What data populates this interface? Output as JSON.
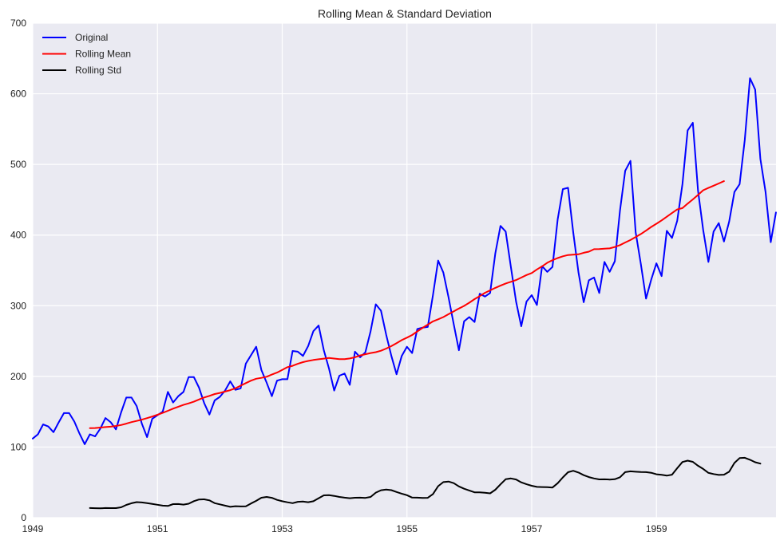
{
  "chart_data": {
    "type": "line",
    "title": "Rolling Mean & Standard Deviation",
    "xlabel": "",
    "ylabel": "",
    "xlim": [
      1949.0,
      1960.917
    ],
    "ylim": [
      0,
      700
    ],
    "x_ticks": [
      1949,
      1951,
      1953,
      1955,
      1957,
      1959
    ],
    "x_tick_labels": [
      "1949",
      "1951",
      "1953",
      "1955",
      "1957",
      "1959"
    ],
    "y_ticks": [
      0,
      100,
      200,
      300,
      400,
      500,
      600,
      700
    ],
    "y_tick_labels": [
      "0",
      "100",
      "200",
      "300",
      "400",
      "500",
      "600",
      "700"
    ],
    "grid": true,
    "legend_position": "top-left",
    "x_start": 1949.0,
    "x_step": 0.08333,
    "series": [
      {
        "name": "Original",
        "color": "#0000ff",
        "start_index": 0,
        "values": [
          112,
          118,
          132,
          129,
          121,
          135,
          148,
          148,
          136,
          119,
          104,
          118,
          115,
          126,
          141,
          135,
          125,
          149,
          170,
          170,
          158,
          133,
          114,
          140,
          145,
          150,
          178,
          163,
          172,
          178,
          199,
          199,
          184,
          162,
          146,
          166,
          171,
          180,
          193,
          181,
          183,
          218,
          230,
          242,
          209,
          191,
          172,
          194,
          196,
          196,
          236,
          235,
          229,
          243,
          264,
          272,
          237,
          211,
          180,
          201,
          204,
          188,
          235,
          227,
          234,
          264,
          302,
          293,
          259,
          229,
          203,
          229,
          242,
          233,
          267,
          269,
          270,
          315,
          364,
          347,
          312,
          274,
          237,
          278,
          284,
          277,
          317,
          313,
          318,
          374,
          413,
          405,
          355,
          306,
          271,
          306,
          315,
          301,
          356,
          348,
          355,
          422,
          465,
          467,
          404,
          347,
          305,
          336,
          340,
          318,
          362,
          348,
          363,
          435,
          491,
          505,
          404,
          359,
          310,
          337,
          360,
          342,
          406,
          396,
          420,
          472,
          548,
          559,
          463,
          407,
          362,
          405,
          417,
          391,
          419,
          461,
          472,
          535,
          622,
          606,
          508,
          461,
          390,
          432
        ]
      },
      {
        "name": "Rolling Mean",
        "color": "#ff0000",
        "start_index": 11,
        "values": [
          126.7,
          126.9,
          127.6,
          128.3,
          128.8,
          129.8,
          131.2,
          133.1,
          135.3,
          137.0,
          138.8,
          140.9,
          143.2,
          145.7,
          148.4,
          151.3,
          154.3,
          157.0,
          159.6,
          161.8,
          164.2,
          167.3,
          170.2,
          172.4,
          175.0,
          176.6,
          178.5,
          180.5,
          183.1,
          186.8,
          190.5,
          194.0,
          196.7,
          197.9,
          199.5,
          202.5,
          205.4,
          209.2,
          213.0,
          215.0,
          217.8,
          220.2,
          221.9,
          223.2,
          224.2,
          225.1,
          226.0,
          225.2,
          224.5,
          224.3,
          225.3,
          227.0,
          229.7,
          231.3,
          233.0,
          234.3,
          236.3,
          239.3,
          242.8,
          247.0,
          251.3,
          254.8,
          258.6,
          263.6,
          268.7,
          273.2,
          277.8,
          280.8,
          284.0,
          288.0,
          292.0,
          296.0,
          299.8,
          304.3,
          309.3,
          313.7,
          318.3,
          321.8,
          325.3,
          328.4,
          331.5,
          333.8,
          336.3,
          339.8,
          343.5,
          346.3,
          351.3,
          355.8,
          360.8,
          364.5,
          367.5,
          370.0,
          371.8,
          372.3,
          372.8,
          375.0,
          376.5,
          380.0,
          380.2,
          380.8,
          381.2,
          383.2,
          385.8,
          389.5,
          393.0,
          397.3,
          401.5,
          406.3,
          411.5,
          416.0,
          420.8,
          426.0,
          431.2,
          436.3,
          438.2,
          444.5,
          450.5,
          456.8,
          463.5,
          466.7,
          469.9,
          473.1,
          476.3
        ]
      },
      {
        "name": "Rolling Std",
        "color": "#000000",
        "start_index": 11,
        "values": [
          13.7,
          13.4,
          13.2,
          13.7,
          13.5,
          13.6,
          14.7,
          18.1,
          20.4,
          22.0,
          21.6,
          20.7,
          19.5,
          18.3,
          17.1,
          16.6,
          19.2,
          19.3,
          18.5,
          19.8,
          23.4,
          25.7,
          26.0,
          24.5,
          20.6,
          18.9,
          17.0,
          15.4,
          16.3,
          15.9,
          16.0,
          20.1,
          23.8,
          28.2,
          29.4,
          28.1,
          25.2,
          23.3,
          21.8,
          20.5,
          22.5,
          22.8,
          21.9,
          23.3,
          27.5,
          31.6,
          31.8,
          30.8,
          29.3,
          28.3,
          27.6,
          28.2,
          28.3,
          28.0,
          29.4,
          35.4,
          38.8,
          39.9,
          39.0,
          36.3,
          34.0,
          31.8,
          28.4,
          28.3,
          28.0,
          28.1,
          33.4,
          44.6,
          50.3,
          51.2,
          48.9,
          44.3,
          41.0,
          38.5,
          35.9,
          35.9,
          35.2,
          34.4,
          39.5,
          47.2,
          54.4,
          55.6,
          54.1,
          50.0,
          47.3,
          45.2,
          43.6,
          43.4,
          43.1,
          42.7,
          48.8,
          57.0,
          64.3,
          66.4,
          63.9,
          60.2,
          57.5,
          55.6,
          54.2,
          54.3,
          54.0,
          54.4,
          57.2,
          64.5,
          65.6,
          65.0,
          64.6,
          64.5,
          63.6,
          61.4,
          60.6,
          59.5,
          60.9,
          70.0,
          78.8,
          80.7,
          79.0,
          73.5,
          69.0,
          63.4,
          61.8,
          60.5,
          60.9,
          65.0,
          77.5,
          84.3,
          84.8,
          82.0,
          78.5,
          76.5
        ]
      }
    ]
  }
}
